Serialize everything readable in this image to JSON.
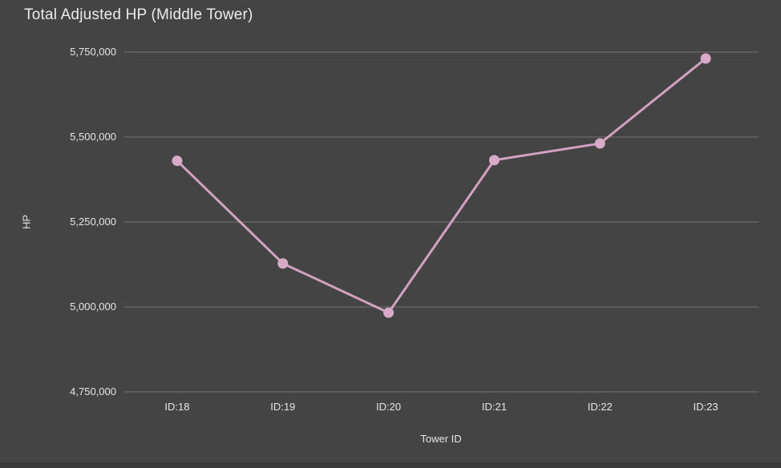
{
  "chart_data": {
    "type": "line",
    "title": "Total Adjusted HP (Middle Tower)",
    "xlabel": "Tower ID",
    "ylabel": "HP",
    "categories": [
      "ID:18",
      "ID:19",
      "ID:20",
      "ID:21",
      "ID:22",
      "ID:23"
    ],
    "series": [
      {
        "name": "Total Adjusted HP",
        "values": [
          5430000,
          5128000,
          4983000,
          5432000,
          5481000,
          5731000
        ]
      }
    ],
    "ylim": [
      4750000,
      5750000
    ],
    "yticks": [
      4750000,
      5000000,
      5250000,
      5500000,
      5750000
    ],
    "ytick_labels": [
      "4,750,000",
      "5,000,000",
      "5,250,000",
      "5,500,000",
      "5,750,000"
    ],
    "grid": true,
    "legend": "none"
  },
  "colors": {
    "background": "#444444",
    "bottom_strip": "#3a3a3a",
    "title_text": "#ececec",
    "tick_text": "#e6e6e6",
    "gridline": "#737373",
    "series_line": "#d3a2c2",
    "series_point": "#d8aac8"
  }
}
